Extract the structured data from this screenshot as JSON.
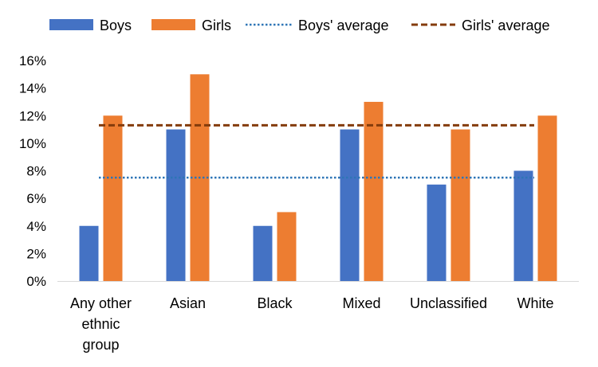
{
  "chart_data": {
    "type": "bar",
    "categories": [
      [
        "Any other",
        "ethnic",
        "group"
      ],
      [
        "Asian"
      ],
      [
        "Black"
      ],
      [
        "Mixed"
      ],
      [
        "Unclassified"
      ],
      [
        "White"
      ]
    ],
    "series": [
      {
        "name": "Boys",
        "color": "#4472C4",
        "values": [
          4,
          11,
          4,
          11,
          7,
          8
        ]
      },
      {
        "name": "Girls",
        "color": "#ED7D31",
        "values": [
          12,
          15,
          5,
          13,
          11,
          12
        ]
      }
    ],
    "reference_lines": [
      {
        "name": "Boys' average",
        "value": 7.5,
        "color": "#2E75B6",
        "style": "dotted"
      },
      {
        "name": "Girls' average",
        "value": 11.3,
        "color": "#843C0C",
        "style": "dashed"
      }
    ],
    "title": "",
    "xlabel": "",
    "ylabel": "",
    "ylim": [
      0,
      16
    ],
    "yticks": [
      0,
      2,
      4,
      6,
      8,
      10,
      12,
      14,
      16
    ],
    "ytick_format": "percent",
    "grid": false,
    "legend_position": "top"
  }
}
